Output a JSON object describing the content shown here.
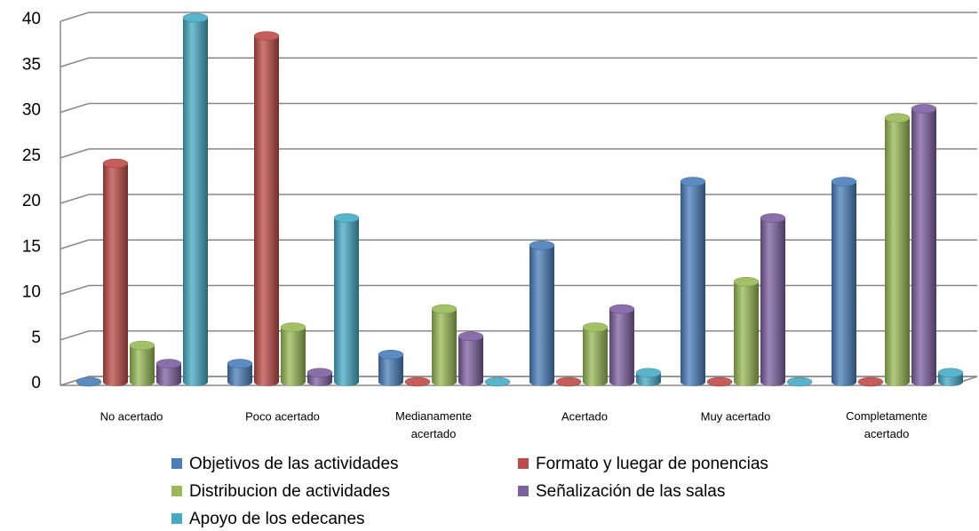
{
  "chart_data": {
    "type": "bar",
    "categories": [
      "No acertado",
      "Poco acertado",
      "Medianamente acertado",
      "Acertado",
      "Muy acertado",
      "Completamente acertado"
    ],
    "series": [
      {
        "name": "Objetivos de las actividades",
        "color": "#4a7ebb",
        "values": [
          0,
          2,
          3,
          15,
          22,
          22
        ]
      },
      {
        "name": "Formato y luegar de ponencias",
        "color": "#be4b48",
        "values": [
          24,
          38,
          0,
          0,
          0,
          0
        ]
      },
      {
        "name": "Distribucion de actividades",
        "color": "#98b954",
        "values": [
          4,
          6,
          8,
          6,
          11,
          29
        ]
      },
      {
        "name": "Señalización de las salas",
        "color": "#7d60a0",
        "values": [
          2,
          1,
          5,
          8,
          18,
          30
        ]
      },
      {
        "name": "Apoyo de los edecanes",
        "color": "#46aac5",
        "values": [
          40,
          18,
          0,
          1,
          0,
          1
        ]
      }
    ],
    "ylim": [
      0,
      40
    ],
    "yticks": [
      0,
      5,
      10,
      15,
      20,
      25,
      30,
      35,
      40
    ],
    "grid": true
  }
}
